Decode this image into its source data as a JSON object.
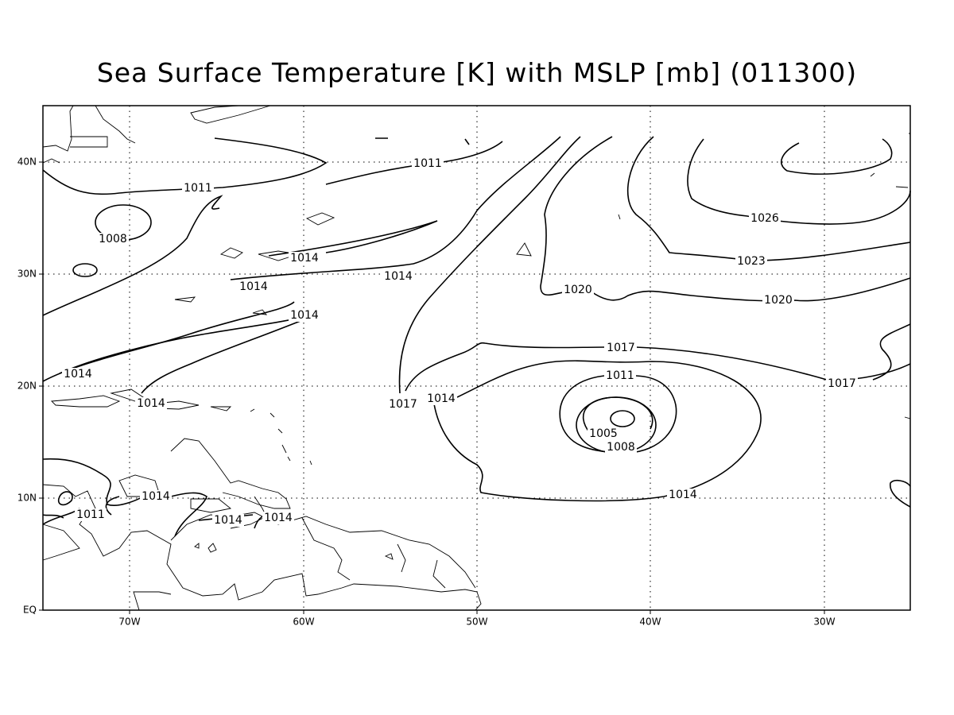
{
  "title": "Sea Surface Temperature [K] with MSLP [mb] (011300)",
  "lon_labels": [
    "70W",
    "60W",
    "50W",
    "40W",
    "30W"
  ],
  "lat_labels": [
    "EQ",
    "10N",
    "20N",
    "30N",
    "40N"
  ],
  "contour_labels": [
    1011,
    1011,
    1008,
    1014,
    1014,
    1014,
    1014,
    1014,
    1014,
    1017,
    1014,
    1020,
    1023,
    1026,
    1020,
    1017,
    1017,
    1011,
    1005,
    1008,
    1014,
    1014,
    1011,
    1014,
    1014
  ]
}
